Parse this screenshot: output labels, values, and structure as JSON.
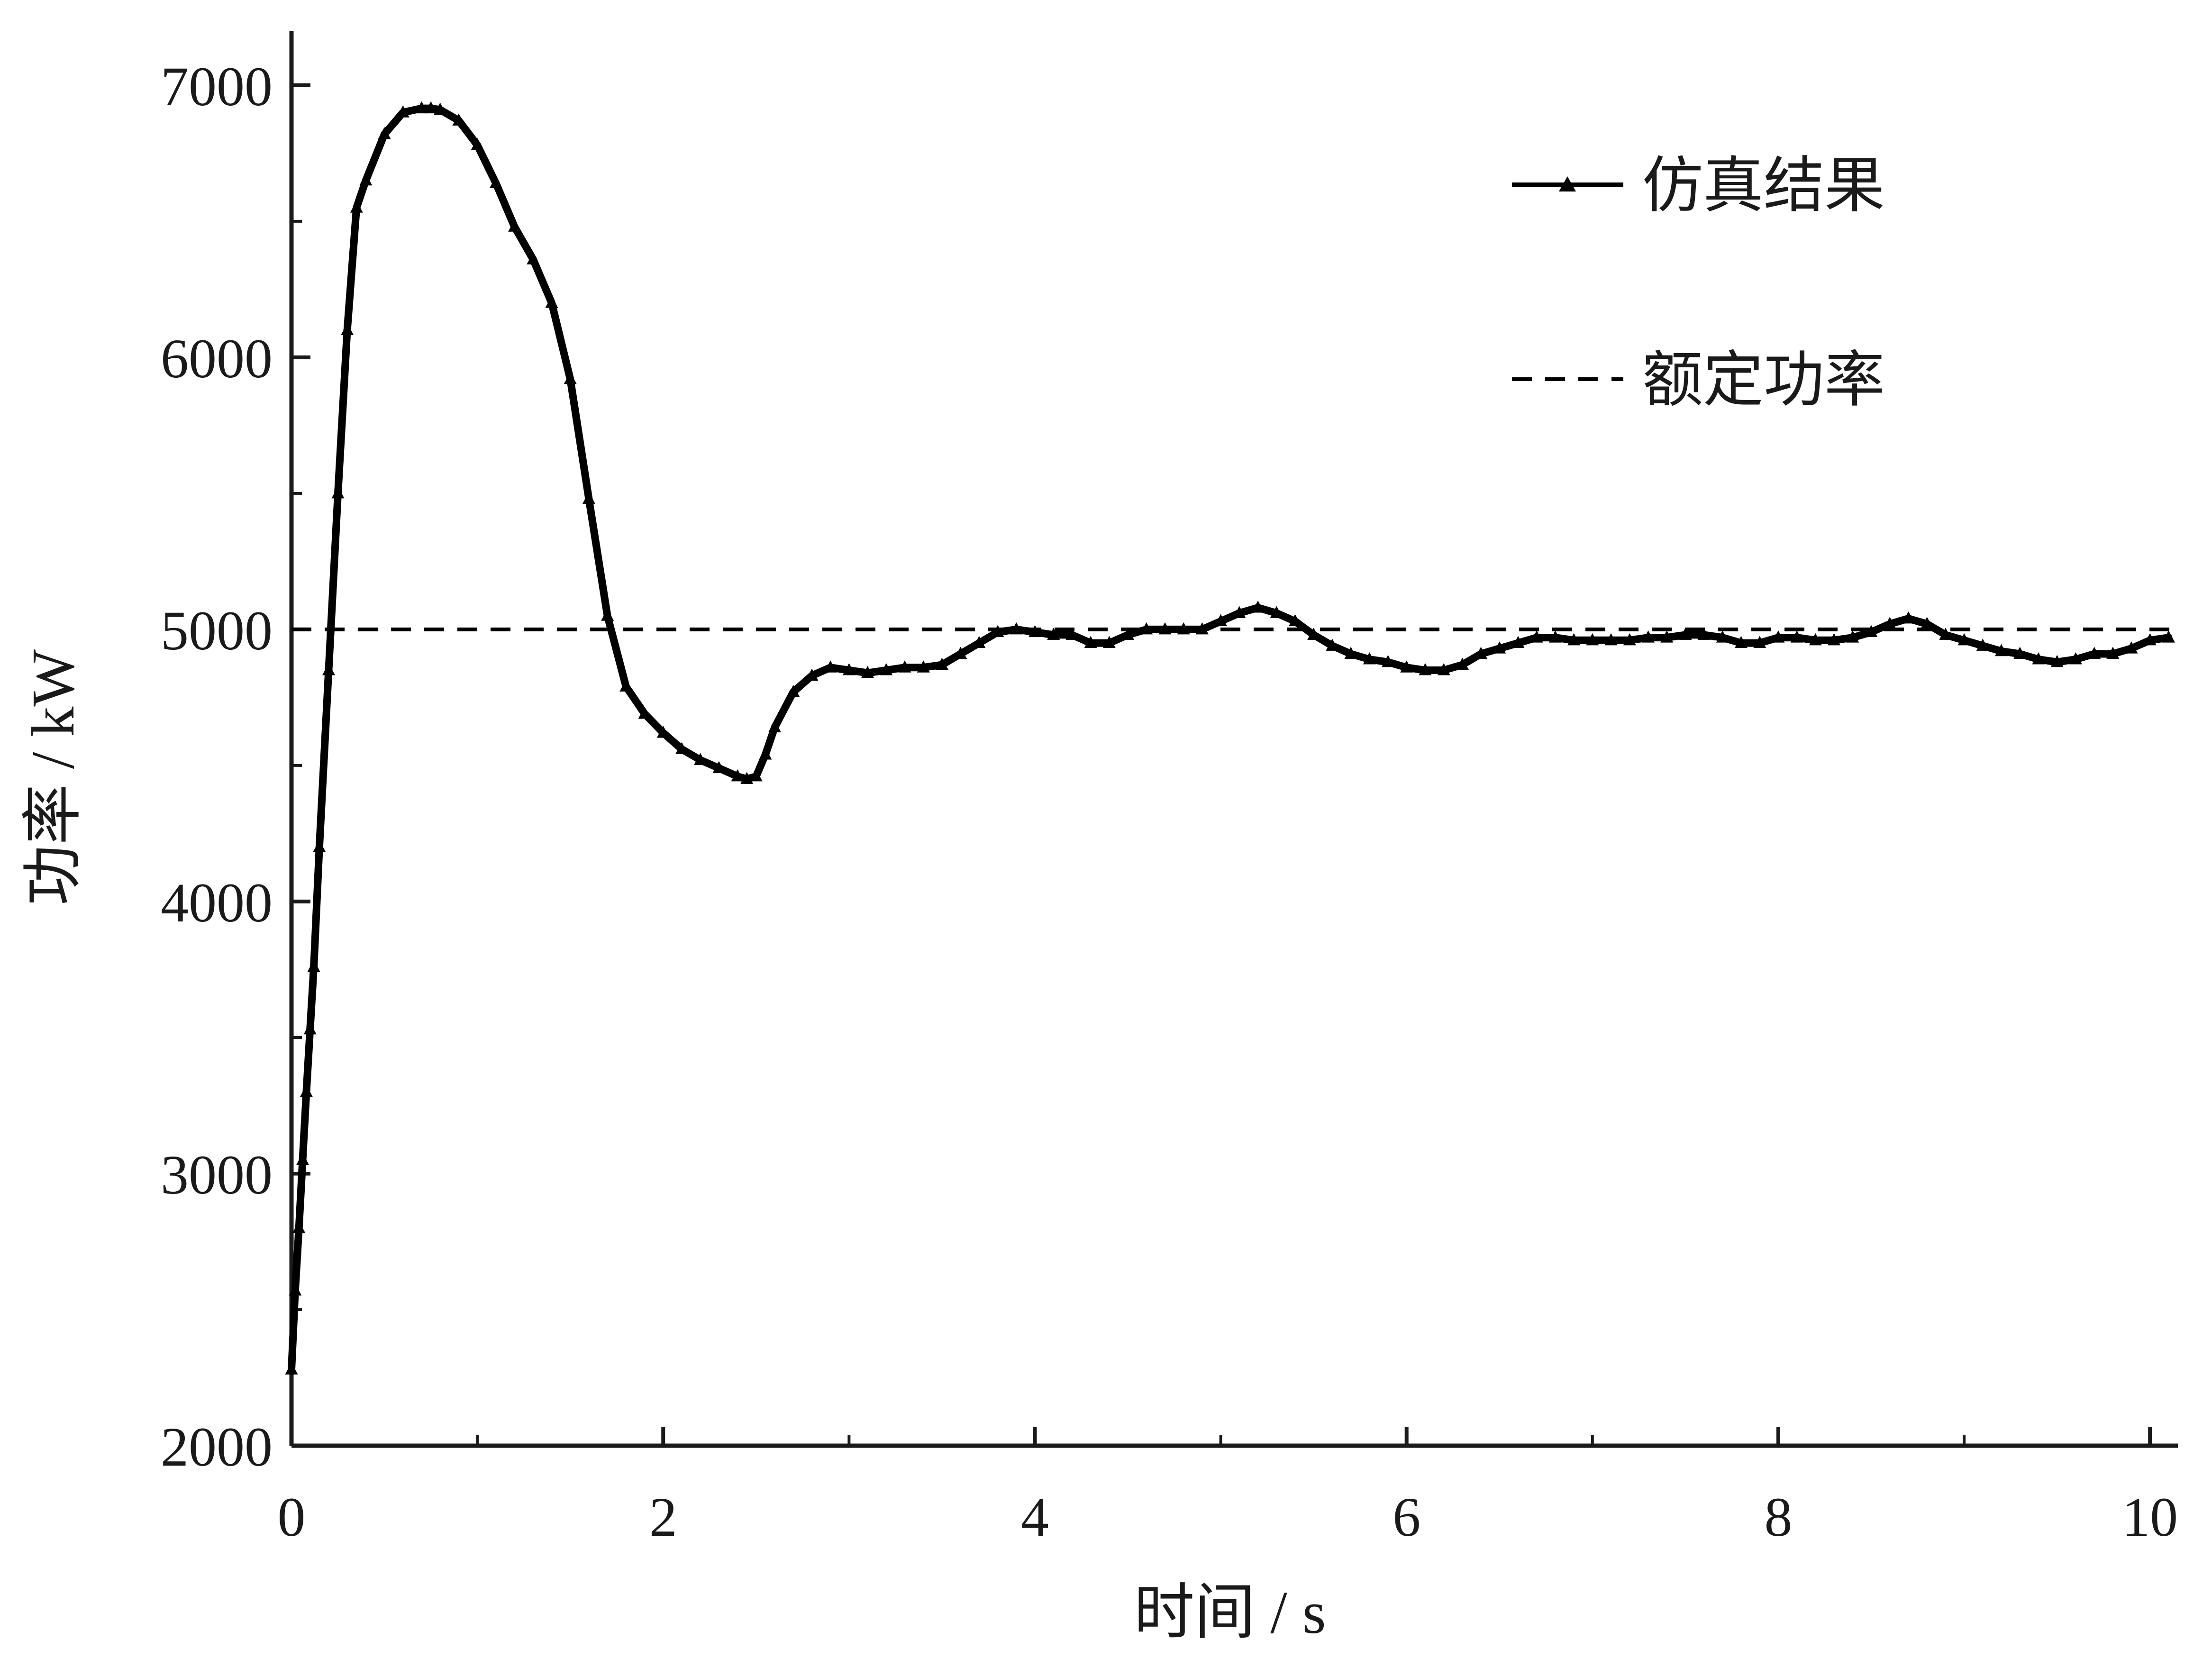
{
  "chart_data": {
    "type": "line",
    "xlabel": "时间 / s",
    "ylabel": "功率 / kW",
    "xlim": [
      0,
      10.15
    ],
    "ylim": [
      2000,
      7200
    ],
    "x_ticks": [
      0,
      2,
      4,
      6,
      8,
      10
    ],
    "x_tick_labels": [
      "0",
      "2",
      "4",
      "6",
      "8",
      "10"
    ],
    "y_ticks": [
      2000,
      3000,
      4000,
      5000,
      6000,
      7000
    ],
    "y_tick_labels": [
      "2000",
      "3000",
      "4000",
      "5000",
      "6000",
      "7000"
    ],
    "grid": false,
    "legend_position": "top-right",
    "colors": {
      "simulation": "#000000",
      "rated": "#000000"
    },
    "series": [
      {
        "name": "仿真结果",
        "style": "solid-with-triangle-markers",
        "x": [
          0,
          0.02,
          0.04,
          0.06,
          0.08,
          0.1,
          0.12,
          0.15,
          0.2,
          0.25,
          0.3,
          0.35,
          0.4,
          0.5,
          0.6,
          0.7,
          0.75,
          0.8,
          0.9,
          1.0,
          1.1,
          1.2,
          1.3,
          1.4,
          1.5,
          1.6,
          1.7,
          1.8,
          1.9,
          2.0,
          2.1,
          2.2,
          2.3,
          2.4,
          2.45,
          2.5,
          2.55,
          2.6,
          2.7,
          2.8,
          2.9,
          3.0,
          3.1,
          3.2,
          3.3,
          3.4,
          3.5,
          3.6,
          3.7,
          3.8,
          3.9,
          4.0,
          4.1,
          4.2,
          4.3,
          4.4,
          4.5,
          4.6,
          4.7,
          4.8,
          4.9,
          5.0,
          5.1,
          5.2,
          5.3,
          5.4,
          5.5,
          5.6,
          5.7,
          5.8,
          5.9,
          6.0,
          6.1,
          6.2,
          6.3,
          6.4,
          6.5,
          6.6,
          6.7,
          6.8,
          6.9,
          7.0,
          7.1,
          7.2,
          7.3,
          7.4,
          7.5,
          7.6,
          7.7,
          7.8,
          7.9,
          8.0,
          8.1,
          8.2,
          8.3,
          8.4,
          8.5,
          8.6,
          8.7,
          8.8,
          8.9,
          9.0,
          9.1,
          9.2,
          9.3,
          9.4,
          9.5,
          9.6,
          9.7,
          9.8,
          9.9,
          10.0,
          10.1
        ],
        "y": [
          2280,
          2570,
          2800,
          3050,
          3300,
          3530,
          3760,
          4200,
          4850,
          5500,
          6100,
          6550,
          6650,
          6820,
          6900,
          6915,
          6915,
          6910,
          6870,
          6780,
          6640,
          6480,
          6360,
          6200,
          5920,
          5480,
          5050,
          4790,
          4690,
          4620,
          4560,
          4520,
          4490,
          4460,
          4450,
          4460,
          4540,
          4640,
          4770,
          4830,
          4860,
          4850,
          4840,
          4850,
          4860,
          4860,
          4870,
          4910,
          4950,
          4990,
          5000,
          4990,
          4980,
          4980,
          4950,
          4950,
          4980,
          5000,
          5000,
          5000,
          5000,
          5030,
          5060,
          5080,
          5060,
          5030,
          4980,
          4940,
          4910,
          4890,
          4880,
          4860,
          4850,
          4850,
          4870,
          4910,
          4930,
          4950,
          4970,
          4970,
          4960,
          4960,
          4960,
          4960,
          4970,
          4970,
          4980,
          4980,
          4970,
          4950,
          4950,
          4970,
          4970,
          4960,
          4960,
          4970,
          4990,
          5020,
          5040,
          5020,
          4980,
          4960,
          4940,
          4920,
          4910,
          4890,
          4880,
          4890,
          4910,
          4910,
          4930,
          4960,
          4970
        ]
      },
      {
        "name": "额定功率",
        "style": "dashed",
        "x": [
          0,
          10.15
        ],
        "y": [
          5000,
          5000
        ]
      }
    ]
  }
}
